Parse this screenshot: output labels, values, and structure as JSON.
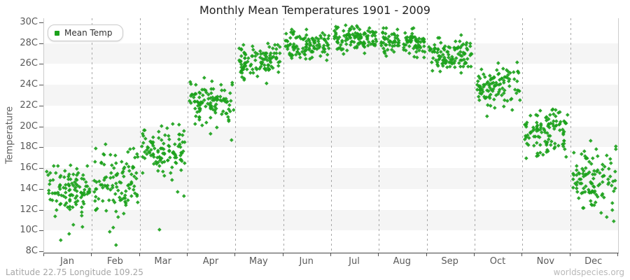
{
  "title": "Monthly Mean Temperatures 1901 - 2009",
  "legend": {
    "label": "Mean Temp"
  },
  "footer": {
    "left": "Latitude 22.75 Longitude 109.25",
    "right": "worldspecies.org"
  },
  "colors": {
    "point": "#1ca21c",
    "band": "#f5f5f5",
    "grid": "#a8a8a8",
    "axis": "#444444",
    "spine": "#cccccc",
    "tick_text": "#5a5a5a",
    "title_text": "#222222",
    "footer_text": "#a6a6a6",
    "watermark_text": "#b9b9b9"
  },
  "chart_data": {
    "type": "scatter",
    "title": "Monthly Mean Temperatures 1901 - 2009",
    "xlabel": "",
    "ylabel": "Temperature",
    "ylim": [
      8,
      30
    ],
    "ytick_step": 2,
    "ytick_suffix": "C",
    "categories": [
      "Jan",
      "Feb",
      "Mar",
      "Apr",
      "May",
      "Jun",
      "Jul",
      "Aug",
      "Sep",
      "Oct",
      "Nov",
      "Dec"
    ],
    "points_per_month": 109,
    "legend_position": "top-left",
    "grid": {
      "vertical": "dashed-month-separators",
      "horizontal": "alternating-2C-bands"
    },
    "series": [
      {
        "month": "Jan",
        "mean": 13.9,
        "sd": 1.15,
        "min": 11.3,
        "max": 16.8,
        "outliers": [
          9.1,
          9.7,
          10.4,
          10.6
        ]
      },
      {
        "month": "Feb",
        "mean": 14.7,
        "sd": 1.65,
        "min": 10.8,
        "max": 18.6,
        "outliers": [
          8.6,
          9.9,
          10.3
        ]
      },
      {
        "month": "Mar",
        "mean": 17.9,
        "sd": 1.25,
        "min": 14.6,
        "max": 21.2,
        "outliers": [
          10.1,
          13.3,
          13.7
        ]
      },
      {
        "month": "Apr",
        "mean": 22.4,
        "sd": 1.05,
        "min": 19.8,
        "max": 25.5,
        "outliers": [
          18.7,
          19.3
        ]
      },
      {
        "month": "May",
        "mean": 26.1,
        "sd": 0.85,
        "min": 23.9,
        "max": 28.4,
        "outliers": []
      },
      {
        "month": "Jun",
        "mean": 27.8,
        "sd": 0.7,
        "min": 26.0,
        "max": 29.5,
        "outliers": []
      },
      {
        "month": "Jul",
        "mean": 28.4,
        "sd": 0.6,
        "min": 26.9,
        "max": 29.8,
        "outliers": []
      },
      {
        "month": "Aug",
        "mean": 28.1,
        "sd": 0.65,
        "min": 26.4,
        "max": 29.6,
        "outliers": []
      },
      {
        "month": "Sep",
        "mean": 27.0,
        "sd": 0.8,
        "min": 24.9,
        "max": 29.0,
        "outliers": []
      },
      {
        "month": "Oct",
        "mean": 23.9,
        "sd": 1.0,
        "min": 21.4,
        "max": 26.5,
        "outliers": [
          21.0
        ]
      },
      {
        "month": "Nov",
        "mean": 19.4,
        "sd": 1.2,
        "min": 16.4,
        "max": 22.2,
        "outliers": []
      },
      {
        "month": "Dec",
        "mean": 15.2,
        "sd": 1.5,
        "min": 11.6,
        "max": 18.9,
        "outliers": [
          10.9,
          11.3
        ]
      }
    ]
  }
}
